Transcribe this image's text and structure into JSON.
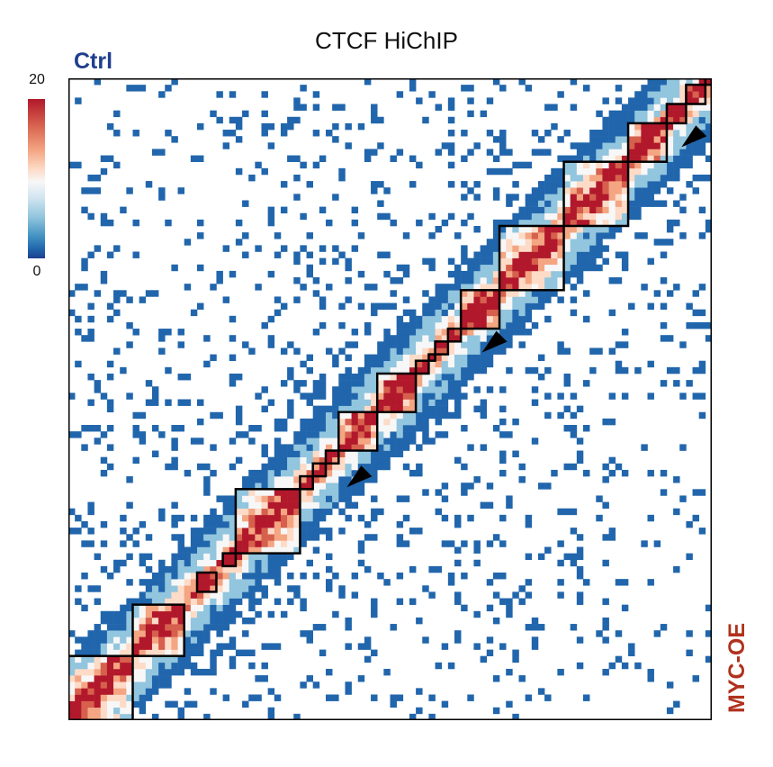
{
  "chart_data": {
    "type": "heatmap",
    "title": "CTCF HiChIP",
    "upper_triangle_label": "Ctrl",
    "lower_triangle_label": "MYC-OE",
    "colorbar": {
      "min": 0,
      "max": 20,
      "colors": [
        "#2166ac",
        "#92c5de",
        "#f7f7f7",
        "#fddbc7",
        "#f4a582",
        "#d6604d",
        "#b2182b"
      ]
    },
    "n_bins": 100,
    "domains": [
      [
        0,
        10
      ],
      [
        10,
        18
      ],
      [
        20,
        23
      ],
      [
        24,
        26
      ],
      [
        26,
        36
      ],
      [
        36,
        38
      ],
      [
        38,
        40
      ],
      [
        40,
        42
      ],
      [
        42,
        48
      ],
      [
        48,
        54
      ],
      [
        54,
        56
      ],
      [
        56,
        57
      ],
      [
        57,
        59
      ],
      [
        59,
        61
      ],
      [
        61,
        67
      ],
      [
        67,
        77
      ],
      [
        77,
        87
      ],
      [
        87,
        93
      ],
      [
        93,
        96
      ],
      [
        96,
        99
      ],
      [
        99,
        100
      ]
    ],
    "loop_arrowheads": [
      [
        36,
        43
      ],
      [
        57,
        64
      ],
      [
        89,
        95
      ]
    ],
    "axis_labels_shown": false
  }
}
